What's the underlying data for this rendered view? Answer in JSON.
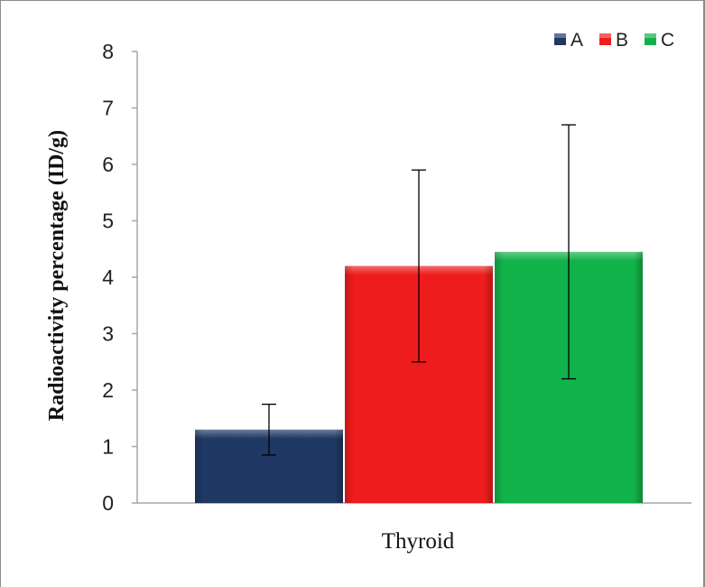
{
  "chart_data": {
    "type": "bar",
    "categories": [
      "Thyroid"
    ],
    "series": [
      {
        "name": "A",
        "values": [
          1.3
        ],
        "error": [
          0.45
        ],
        "color": "#1f3864"
      },
      {
        "name": "B",
        "values": [
          4.2
        ],
        "error": [
          1.7
        ],
        "color": "#ee1c1c"
      },
      {
        "name": "C",
        "values": [
          4.45
        ],
        "error": [
          2.25
        ],
        "color": "#12b24a"
      }
    ],
    "title": "",
    "xlabel": "",
    "ylabel": "Radioactivity percentage (ID/g)",
    "ylim": [
      0,
      8
    ],
    "yticks": [
      "0",
      "1",
      "2",
      "3",
      "4",
      "5",
      "6",
      "7",
      "8"
    ],
    "grid": false,
    "legend": "top-right"
  }
}
